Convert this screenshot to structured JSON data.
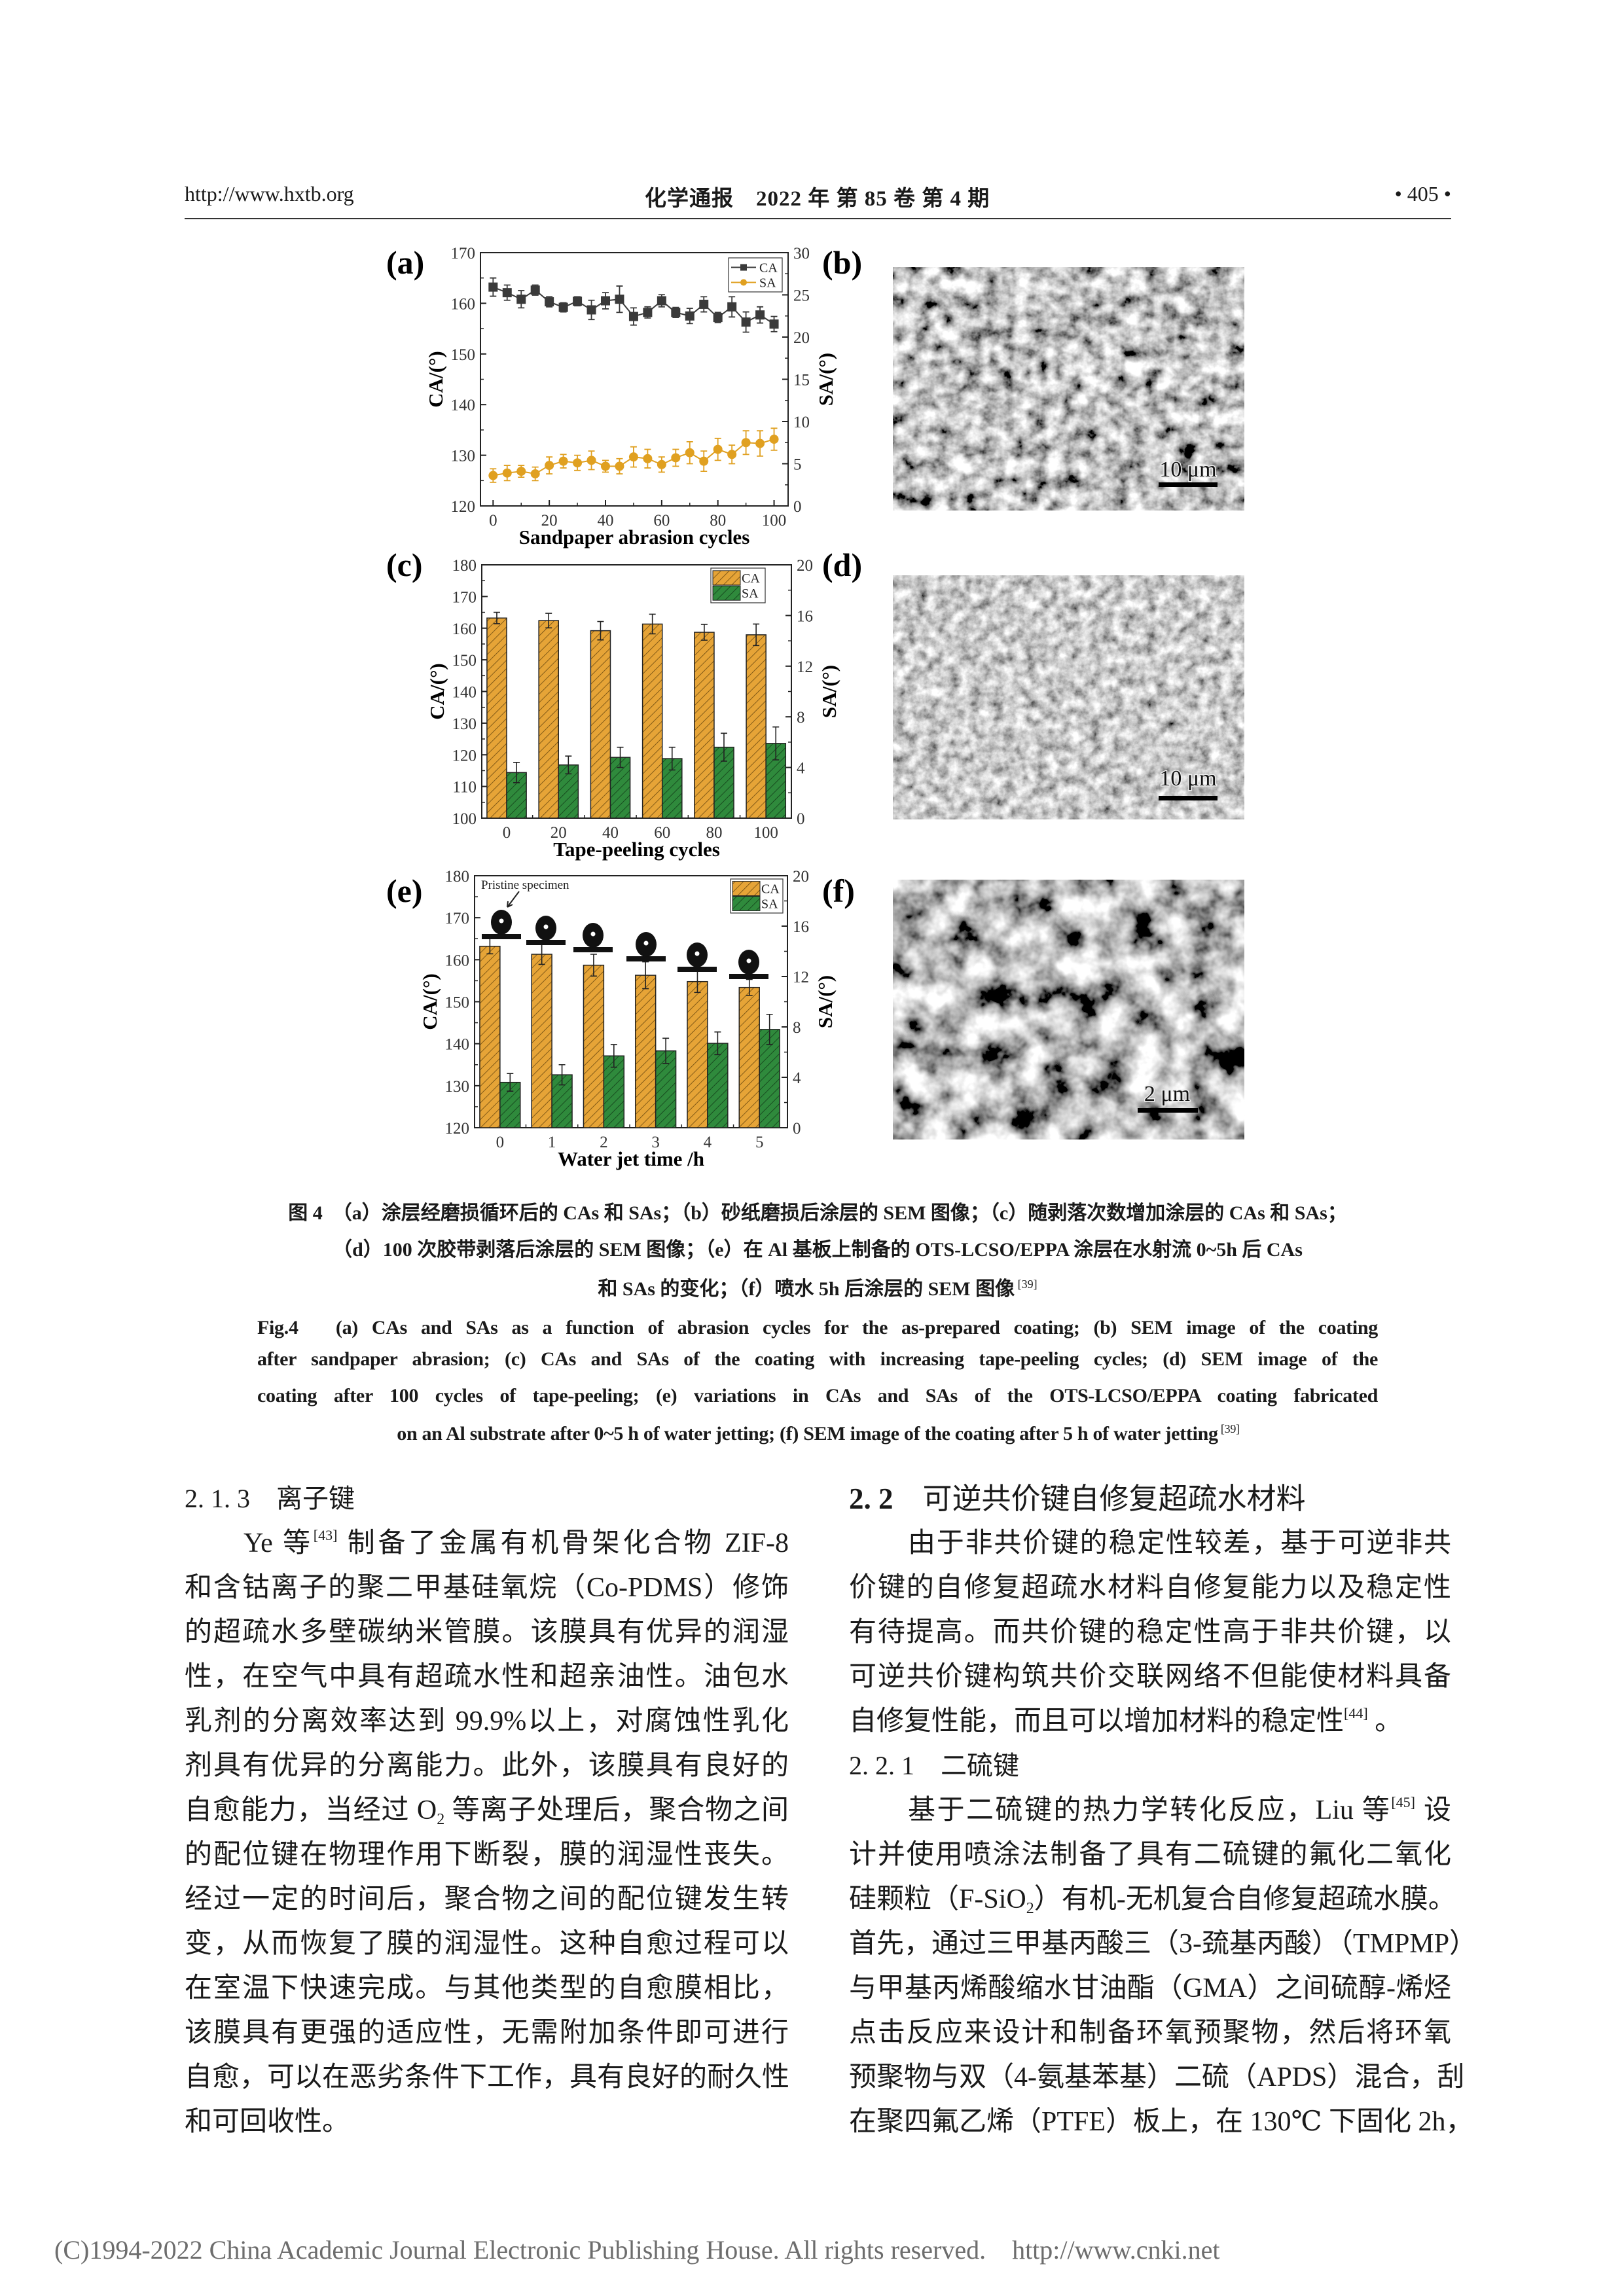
{
  "header": {
    "url": "http://www.hxtb.org",
    "journal": "化学通报　2022 年 第 85 卷 第 4 期",
    "page": "• 405 •"
  },
  "figure": {
    "panel_labels": {
      "a": "(a)",
      "b": "(b)",
      "c": "(c)",
      "d": "(d)",
      "e": "(e)",
      "f": "(f)"
    },
    "sem_scale_bars": {
      "b": "10 μm",
      "d": "10 μm",
      "f": "2 μm"
    },
    "caption_cn": [
      {
        "text": "图 4　（a）涂层经磨损循环后的 CAs 和 SAs；（b）砂纸磨损后涂层的 SEM 图像；（c）随剥落次数增加涂层的 CAs 和 SAs；"
      },
      {
        "text": "（d）100 次胶带剥落后涂层的 SEM 图像；（e）在 Al 基板上制备的 OTS-LCSO/EPPA 涂层在水射流 0~5h 后 CAs"
      },
      {
        "text": "和 SAs 的变化；（f）喷水 5h 后涂层的 SEM 图像",
        "sup": "39"
      }
    ],
    "caption_en": [
      {
        "text": "Fig.4　(a) CAs and SAs as a function of abrasion cycles for the as-prepared coating; (b) SEM image of the coating"
      },
      {
        "text": "after sandpaper abrasion; (c) CAs and SAs of the coating with increasing tape-peeling cycles; (d) SEM image of the"
      },
      {
        "text": "coating after 100 cycles of tape-peeling; (e) variations in CAs and SAs of the OTS-LCSO/EPPA coating fabricated"
      },
      {
        "text": "on an Al substrate after 0~5 h of water jetting; (f) SEM image of the coating after 5 h of water jetting",
        "sup": "39"
      }
    ]
  },
  "chart_data": [
    {
      "panel": "(a)",
      "type": "line",
      "xlabel": "Sandpaper abrasion cycles",
      "ylabel": "CA/(°)",
      "y2label": "SA/(°)",
      "x": [
        0,
        5,
        10,
        15,
        20,
        25,
        30,
        35,
        40,
        45,
        50,
        55,
        60,
        65,
        70,
        75,
        80,
        85,
        90,
        95,
        100
      ],
      "xticks": [
        0,
        20,
        40,
        60,
        80,
        100
      ],
      "ylim": [
        120,
        170
      ],
      "yticks": [
        120,
        130,
        140,
        150,
        160,
        170
      ],
      "y2lim": [
        0,
        30
      ],
      "y2ticks": [
        0,
        5,
        10,
        15,
        20,
        25,
        30
      ],
      "legend": "top-right",
      "grid": false,
      "series": [
        {
          "name": "CA",
          "axis": "left",
          "color": "#3a3a3a",
          "marker": "square",
          "values": [
            163.2,
            162.1,
            160.8,
            162.6,
            160.3,
            159.2,
            160.4,
            158.7,
            160.5,
            160.8,
            157.4,
            158.2,
            160.5,
            158.2,
            157.5,
            159.8,
            157.2,
            159.3,
            156.3,
            157.7,
            155.9
          ],
          "errors": [
            1.8,
            1.5,
            1.7,
            1.0,
            1.0,
            0.9,
            0.9,
            1.9,
            1.6,
            2.6,
            1.7,
            1.1,
            1.2,
            1.0,
            1.5,
            1.5,
            1.0,
            2.0,
            2.0,
            1.6,
            1.5
          ]
        },
        {
          "name": "SA",
          "axis": "right",
          "color": "#e0a020",
          "marker": "circle",
          "values": [
            3.6,
            3.9,
            4.1,
            3.8,
            4.8,
            5.3,
            5.1,
            5.4,
            4.7,
            4.7,
            5.8,
            5.6,
            4.9,
            5.7,
            6.3,
            5.3,
            6.7,
            6.1,
            7.5,
            7.4,
            7.9
          ],
          "errors": [
            0.8,
            0.9,
            0.7,
            0.8,
            1.0,
            0.8,
            0.9,
            1.1,
            0.7,
            0.9,
            1.2,
            1.1,
            0.9,
            1.0,
            1.3,
            1.2,
            1.3,
            1.1,
            1.4,
            1.5,
            1.3
          ]
        }
      ]
    },
    {
      "panel": "(c)",
      "type": "bar",
      "xlabel": "Tape-peeling cycles",
      "ylabel": "CA/(°)",
      "y2label": "SA/(°)",
      "categories": [
        "0",
        "20",
        "40",
        "60",
        "80",
        "100"
      ],
      "ylim": [
        100,
        180
      ],
      "yticks": [
        100,
        110,
        120,
        130,
        140,
        150,
        160,
        170,
        180
      ],
      "y2lim": [
        0,
        20
      ],
      "y2ticks": [
        0,
        4,
        8,
        12,
        16,
        20
      ],
      "legend": "top-right",
      "grid": false,
      "series": [
        {
          "name": "CA",
          "axis": "left",
          "color": "#e6a437",
          "values": [
            163.2,
            162.4,
            159.2,
            161.3,
            158.7,
            157.9
          ],
          "errors": [
            1.8,
            2.3,
            2.9,
            3.1,
            2.5,
            3.4
          ]
        },
        {
          "name": "SA",
          "axis": "right",
          "color": "#2f8a3c",
          "values": [
            3.6,
            4.2,
            4.8,
            4.7,
            5.6,
            5.9
          ],
          "errors": [
            0.8,
            0.7,
            0.8,
            0.9,
            1.1,
            1.3
          ]
        }
      ]
    },
    {
      "panel": "(e)",
      "type": "bar",
      "xlabel": "Water jet time /h",
      "ylabel": "CA/(°)",
      "y2label": "SA/(°)",
      "categories": [
        "0",
        "1",
        "2",
        "3",
        "4",
        "5"
      ],
      "ylim": [
        120,
        180
      ],
      "yticks": [
        120,
        130,
        140,
        150,
        160,
        170,
        180
      ],
      "y2lim": [
        0,
        20
      ],
      "y2ticks": [
        0,
        4,
        8,
        12,
        16,
        20
      ],
      "legend": "top-right",
      "grid": false,
      "annotation": "Pristine specimen",
      "series": [
        {
          "name": "CA",
          "axis": "left",
          "color": "#e6a437",
          "values": [
            163.2,
            161.3,
            158.7,
            156.3,
            154.8,
            153.4
          ],
          "errors": [
            1.8,
            2.4,
            2.6,
            3.2,
            2.6,
            1.9
          ]
        },
        {
          "name": "SA",
          "axis": "right",
          "color": "#2f8a3c",
          "values": [
            3.6,
            4.2,
            5.7,
            6.1,
            6.7,
            7.8
          ],
          "errors": [
            0.7,
            0.8,
            0.9,
            1.0,
            0.9,
            1.2
          ]
        }
      ]
    }
  ],
  "body": {
    "left": [
      {
        "cls": "h3",
        "segs": [
          {
            "t": "2. 1. 3　离子键"
          }
        ]
      },
      {
        "cls": "ind",
        "segs": [
          {
            "t": "Ye 等"
          },
          {
            "sup": "[43]"
          },
          {
            "t": " 制备了金属有机骨架化合物 ZIF-8"
          }
        ]
      },
      {
        "segs": [
          {
            "t": "和含钴离子的聚二甲基硅氧烷（Co-PDMS）修饰"
          }
        ]
      },
      {
        "segs": [
          {
            "t": "的超疏水多壁碳纳米管膜。该膜具有优异的润湿"
          }
        ]
      },
      {
        "segs": [
          {
            "t": "性，在空气中具有超疏水性和超亲油性。油包水"
          }
        ]
      },
      {
        "segs": [
          {
            "t": "乳剂的分离效率达到 99.9%以上，对腐蚀性乳化"
          }
        ]
      },
      {
        "segs": [
          {
            "t": "剂具有优异的分离能力。此外，该膜具有良好的"
          }
        ]
      },
      {
        "segs": [
          {
            "t": "自愈能力，当经过 O"
          },
          {
            "sub": "2"
          },
          {
            "t": " 等离子处理后，聚合物之间"
          }
        ]
      },
      {
        "segs": [
          {
            "t": "的配位键在物理作用下断裂，膜的润湿性丧失。"
          }
        ]
      },
      {
        "segs": [
          {
            "t": "经过一定的时间后，聚合物之间的配位键发生转"
          }
        ]
      },
      {
        "segs": [
          {
            "t": "变，从而恢复了膜的润湿性。这种自愈过程可以"
          }
        ]
      },
      {
        "segs": [
          {
            "t": "在室温下快速完成。与其他类型的自愈膜相比，"
          }
        ]
      },
      {
        "segs": [
          {
            "t": "该膜具有更强的适应性，无需附加条件即可进行"
          }
        ]
      },
      {
        "segs": [
          {
            "t": "自愈，可以在恶劣条件下工作，具有良好的耐久性"
          }
        ]
      },
      {
        "cls": "end",
        "segs": [
          {
            "t": "和可回收性。"
          }
        ]
      }
    ],
    "right": [
      {
        "cls": "h2",
        "segs": [
          {
            "b": "2. 2"
          },
          {
            "t": "　可逆共价键自修复超疏水材料"
          }
        ]
      },
      {
        "cls": "ind",
        "segs": [
          {
            "t": "由于非共价键的稳定性较差，基于可逆非共"
          }
        ]
      },
      {
        "segs": [
          {
            "t": "价键的自修复超疏水材料自修复能力以及稳定性"
          }
        ]
      },
      {
        "segs": [
          {
            "t": "有待提高。而共价键的稳定性高于非共价键，以"
          }
        ]
      },
      {
        "segs": [
          {
            "t": "可逆共价键构筑共价交联网络不但能使材料具备"
          }
        ]
      },
      {
        "cls": "end",
        "segs": [
          {
            "t": "自修复性能，而且可以增加材料的稳定性"
          },
          {
            "sup": "[44]"
          },
          {
            "t": " 。"
          }
        ]
      },
      {
        "cls": "h3",
        "segs": [
          {
            "t": "2. 2. 1　二硫键"
          }
        ]
      },
      {
        "cls": "ind",
        "segs": [
          {
            "t": "基于二硫键的热力学转化反应，Liu 等"
          },
          {
            "sup": "[45]"
          },
          {
            "t": " 设"
          }
        ]
      },
      {
        "segs": [
          {
            "t": "计并使用喷涂法制备了具有二硫键的氟化二氧化"
          }
        ]
      },
      {
        "segs": [
          {
            "t": "硅颗粒（F-SiO"
          },
          {
            "sub": "2"
          },
          {
            "t": "）有机-无机复合自修复超疏水膜。"
          }
        ]
      },
      {
        "segs": [
          {
            "t": "首先，通过三甲基丙酸三（3-巯基丙酸）（TMPMP）"
          }
        ]
      },
      {
        "segs": [
          {
            "t": "与甲基丙烯酸缩水甘油酯（GMA）之间硫醇-烯烃"
          }
        ]
      },
      {
        "segs": [
          {
            "t": "点击反应来设计和制备环氧预聚物，然后将环氧"
          }
        ]
      },
      {
        "segs": [
          {
            "t": "预聚物与双（4-氨基苯基）二硫（APDS）混合，刮"
          }
        ]
      },
      {
        "segs": [
          {
            "t": "在聚四氟乙烯（PTFE）板上，在 130℃ 下固化 2h，"
          }
        ]
      }
    ]
  },
  "footer": "(C)1994-2022 China Academic Journal Electronic Publishing House. All rights reserved.    http://www.cnki.net"
}
